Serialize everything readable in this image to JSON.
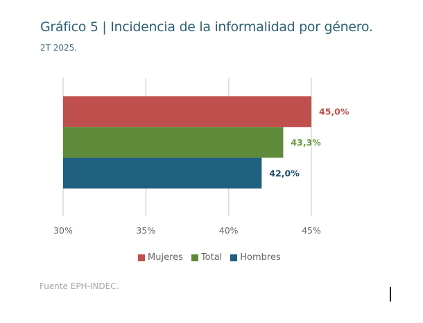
{
  "header": {
    "title": "Gráfico 5 | Incidencia de la informalidad por género.",
    "subtitle": "2T 2025."
  },
  "footer": {
    "source": "Fuente EPH-INDEC."
  },
  "chart_data": {
    "type": "bar",
    "orientation": "horizontal",
    "title": "Gráfico 5 | Incidencia de la informalidad por género.",
    "subtitle": "2T 2025.",
    "xlabel": "",
    "ylabel": "",
    "xlim": [
      30,
      45
    ],
    "x_ticks": [
      30,
      35,
      40,
      45
    ],
    "x_tick_labels": [
      "30%",
      "35%",
      "40%",
      "45%"
    ],
    "grid": "vertical",
    "legend_position": "bottom",
    "series": [
      {
        "name": "Mujeres",
        "value": 45.0,
        "label": "45,0%",
        "color": "#C0504D",
        "label_color": "#C0504D"
      },
      {
        "name": "Total",
        "value": 43.3,
        "label": "43,3%",
        "color": "#5F8A3A",
        "label_color": "#6A9A3E"
      },
      {
        "name": "Hombres",
        "value": 42.0,
        "label": "42,0%",
        "color": "#1F5F7F",
        "label_color": "#1F4E6B"
      }
    ]
  }
}
